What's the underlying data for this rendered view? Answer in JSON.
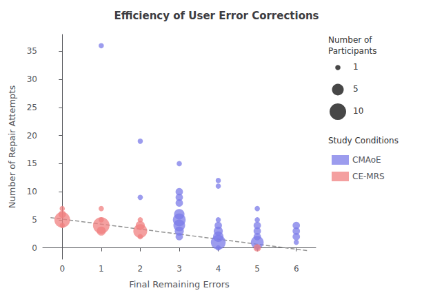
{
  "chart_data": {
    "type": "scatter",
    "title": "Efficiency of User Error Corrections",
    "xlabel": "Final Remaining Errors",
    "ylabel": "Number of Repair Attempts",
    "xlim": [
      -0.5,
      6.5
    ],
    "xticks": [
      0,
      1,
      2,
      3,
      4,
      5,
      6
    ],
    "ylim": [
      -2,
      38
    ],
    "yticks": [
      0,
      5,
      10,
      15,
      20,
      25,
      30,
      35
    ],
    "grid": false,
    "legend": "right",
    "legend_title": "Study Conditions",
    "series": [
      {
        "name": "CMAoE",
        "color": "#7b7be8",
        "x": [
          1,
          2,
          2,
          3,
          3,
          3,
          3,
          3,
          3,
          3,
          3,
          3,
          4,
          4,
          4,
          4,
          4,
          4,
          4,
          4,
          5,
          5,
          5,
          5,
          5,
          5,
          5,
          6,
          6,
          6,
          6
        ],
        "y": [
          36,
          19,
          9,
          15,
          10,
          9,
          8,
          6,
          5,
          4,
          3,
          2,
          12,
          11,
          5,
          4,
          3,
          2,
          1,
          0,
          7,
          5,
          4,
          3,
          2,
          1,
          0,
          1,
          4,
          3,
          2
        ],
        "sizes": [
          1,
          1,
          1,
          1,
          2,
          2,
          2,
          4,
          6,
          5,
          3,
          2,
          1,
          1,
          1,
          2,
          3,
          4,
          8,
          1,
          1,
          1,
          2,
          2,
          2,
          6,
          1,
          1,
          2,
          2,
          2
        ]
      },
      {
        "name": "CE-MRS",
        "color": "#f08080",
        "x": [
          0,
          0,
          0,
          0,
          1,
          1,
          1,
          1,
          2,
          2,
          2,
          2,
          5
        ],
        "y": [
          7,
          6,
          5,
          4,
          7,
          5,
          4,
          3,
          5,
          4,
          3,
          2,
          0
        ],
        "sizes": [
          1,
          2,
          9,
          1,
          1,
          1,
          10,
          3,
          1,
          3,
          7,
          1,
          2
        ]
      }
    ],
    "trendline": {
      "x": [
        -0.3,
        6.3
      ],
      "y": [
        5.4,
        -0.5
      ],
      "color": "gray",
      "line_style": "dashed"
    },
    "size_legend": {
      "title": "Number of\nParticipants",
      "values": [
        1,
        5,
        10
      ],
      "color": "#333333"
    }
  }
}
